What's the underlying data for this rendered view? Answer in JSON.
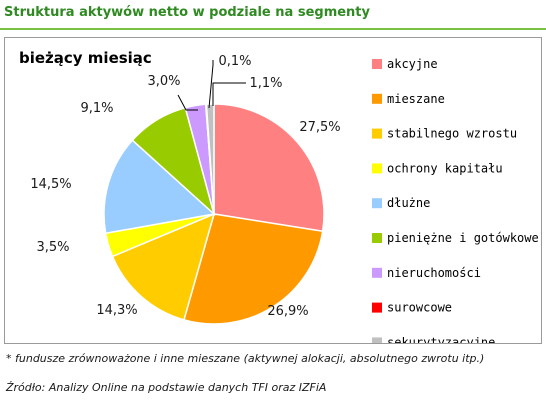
{
  "header": {
    "title": "Struktura aktywów netto w podziale na segmenty"
  },
  "chart_data": {
    "type": "pie",
    "title": "bieżący miesiąc",
    "categories": [
      "akcyjne",
      "mieszane",
      "stabilnego wzrostu",
      "ochrony kapitału",
      "dłużne",
      "pieniężne i gotówkowe",
      "nieruchomości",
      "surowcowe",
      "sekurytyzacyjne"
    ],
    "values": [
      27.5,
      26.9,
      14.3,
      3.5,
      14.5,
      9.1,
      3.0,
      0.1,
      1.1
    ],
    "labels": [
      "27,5%",
      "26,9%",
      "14,3%",
      "3,5%",
      "14,5%",
      "9,1%",
      "3,0%",
      "0,1%",
      "1,1%"
    ],
    "colors": [
      "#ff8080",
      "#ff9900",
      "#ffcc00",
      "#ffff00",
      "#99ccff",
      "#99cc00",
      "#cc99ff",
      "#ff0000",
      "#c0c0c0"
    ],
    "legend_position": "right"
  },
  "footnote": "* fundusze zrównoważone i inne mieszane (aktywnej alokacji, absolutnego zwrotu itp.)",
  "source": "Źródło: Analizy Online na podstawie danych TFI oraz IZFiA"
}
